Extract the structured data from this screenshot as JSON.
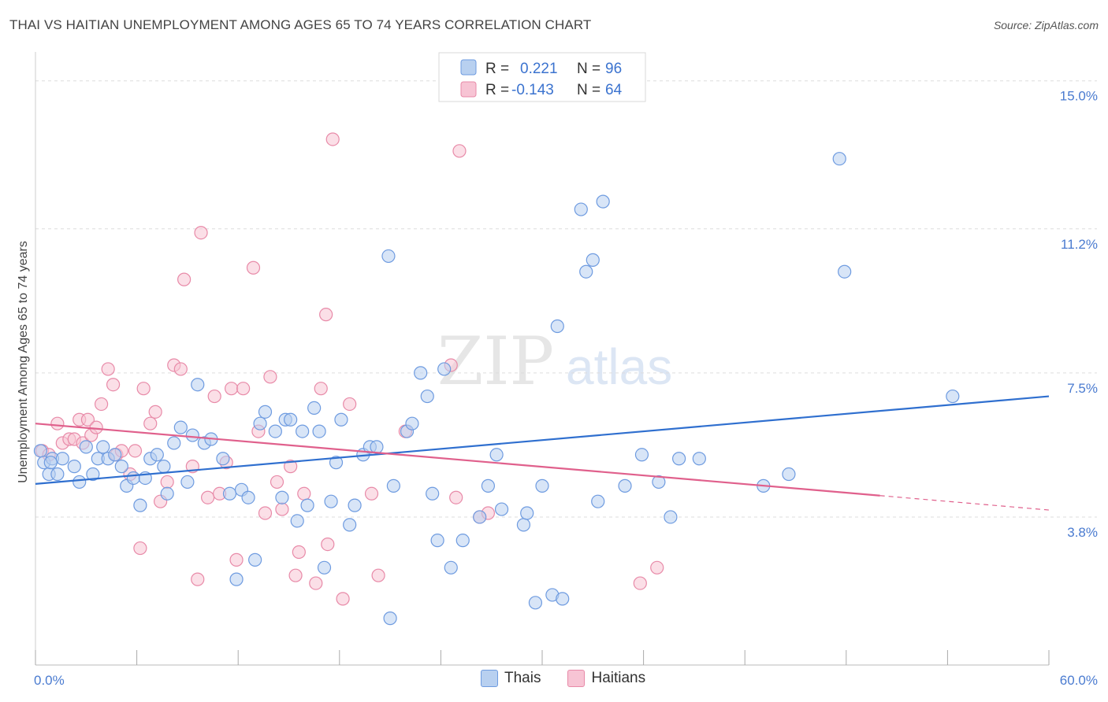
{
  "title": "THAI VS HAITIAN UNEMPLOYMENT AMONG AGES 65 TO 74 YEARS CORRELATION CHART",
  "source": "Source: ZipAtlas.com",
  "colors": {
    "thais_fill": "#b8d0f0",
    "thais_stroke": "#6e9be0",
    "thais_line": "#2f6fcf",
    "haitians_fill": "#f7c4d4",
    "haitians_stroke": "#e88aa8",
    "haitians_line": "#e0608c",
    "tick_text": "#4a7bd0",
    "grid": "#dddddd"
  },
  "legend": {
    "rows": [
      {
        "r_label": "R =",
        "r_value": "0.221",
        "n_label": "N =",
        "n_value": "96"
      },
      {
        "r_label": "R =",
        "r_value": "-0.143",
        "n_label": "N =",
        "n_value": "64"
      }
    ]
  },
  "bottom_legend": {
    "thais": "Thais",
    "haitians": "Haitians"
  },
  "watermark": {
    "zip": "ZIP",
    "atlas": "atlas"
  },
  "chart_data": {
    "type": "scatter",
    "title": "THAI VS HAITIAN UNEMPLOYMENT AMONG AGES 65 TO 74 YEARS CORRELATION CHART",
    "ylabel": "Unemployment Among Ages 65 to 74 years",
    "xlabel": "",
    "xlim": [
      0,
      60
    ],
    "ylim": [
      0,
      15.5
    ],
    "x_tick_labels": [
      "0.0%",
      "60.0%"
    ],
    "y_ticks": [
      3.8,
      7.5,
      11.2,
      15.0
    ],
    "y_tick_labels": [
      "3.8%",
      "7.5%",
      "11.2%",
      "15.0%"
    ],
    "grid": true,
    "legend_position": "top-center",
    "series": [
      {
        "name": "Thais",
        "trend": {
          "x": [
            0,
            60
          ],
          "y": [
            4.65,
            6.9
          ]
        },
        "points": [
          [
            0.3,
            5.5
          ],
          [
            0.5,
            5.2
          ],
          [
            0.8,
            4.9
          ],
          [
            1.0,
            5.3
          ],
          [
            1.3,
            4.9
          ],
          [
            1.6,
            5.3
          ],
          [
            2.3,
            5.1
          ],
          [
            2.6,
            4.7
          ],
          [
            3.0,
            5.6
          ],
          [
            3.4,
            4.9
          ],
          [
            3.7,
            5.3
          ],
          [
            4.0,
            5.6
          ],
          [
            4.3,
            5.3
          ],
          [
            4.7,
            5.4
          ],
          [
            5.1,
            5.1
          ],
          [
            5.4,
            4.6
          ],
          [
            5.8,
            4.8
          ],
          [
            6.2,
            4.1
          ],
          [
            6.5,
            4.8
          ],
          [
            6.8,
            5.3
          ],
          [
            7.2,
            5.4
          ],
          [
            7.6,
            5.1
          ],
          [
            7.8,
            4.4
          ],
          [
            8.2,
            5.7
          ],
          [
            8.6,
            6.1
          ],
          [
            9.0,
            4.7
          ],
          [
            9.3,
            5.9
          ],
          [
            9.6,
            7.2
          ],
          [
            10.0,
            5.7
          ],
          [
            10.4,
            5.8
          ],
          [
            11.1,
            5.3
          ],
          [
            11.5,
            4.4
          ],
          [
            11.9,
            2.2
          ],
          [
            12.2,
            4.5
          ],
          [
            12.6,
            4.3
          ],
          [
            13.0,
            2.7
          ],
          [
            13.3,
            6.2
          ],
          [
            13.6,
            6.5
          ],
          [
            14.2,
            6.0
          ],
          [
            14.8,
            6.3
          ],
          [
            14.6,
            4.3
          ],
          [
            15.1,
            6.3
          ],
          [
            15.5,
            3.7
          ],
          [
            15.8,
            6.0
          ],
          [
            16.1,
            4.1
          ],
          [
            16.5,
            6.6
          ],
          [
            16.8,
            6.0
          ],
          [
            17.1,
            2.5
          ],
          [
            17.5,
            4.2
          ],
          [
            17.8,
            5.2
          ],
          [
            18.1,
            6.3
          ],
          [
            18.6,
            3.6
          ],
          [
            18.9,
            4.1
          ],
          [
            19.4,
            5.4
          ],
          [
            19.8,
            5.6
          ],
          [
            20.2,
            5.6
          ],
          [
            20.9,
            10.5
          ],
          [
            21.2,
            4.6
          ],
          [
            21.0,
            1.2
          ],
          [
            22.0,
            6.0
          ],
          [
            22.3,
            6.2
          ],
          [
            22.8,
            7.5
          ],
          [
            23.2,
            6.9
          ],
          [
            23.5,
            4.4
          ],
          [
            23.8,
            3.2
          ],
          [
            24.2,
            7.6
          ],
          [
            24.6,
            2.5
          ],
          [
            25.3,
            3.2
          ],
          [
            26.3,
            3.8
          ],
          [
            26.8,
            4.6
          ],
          [
            27.3,
            5.4
          ],
          [
            27.6,
            4.0
          ],
          [
            28.9,
            3.6
          ],
          [
            29.1,
            3.9
          ],
          [
            29.6,
            1.6
          ],
          [
            30.0,
            4.6
          ],
          [
            30.6,
            1.8
          ],
          [
            30.9,
            8.7
          ],
          [
            31.2,
            1.7
          ],
          [
            32.3,
            11.7
          ],
          [
            32.6,
            10.1
          ],
          [
            33.0,
            10.4
          ],
          [
            33.3,
            4.2
          ],
          [
            33.6,
            11.9
          ],
          [
            34.9,
            4.6
          ],
          [
            35.9,
            5.4
          ],
          [
            36.9,
            4.7
          ],
          [
            37.6,
            3.8
          ],
          [
            38.1,
            5.3
          ],
          [
            39.3,
            5.3
          ],
          [
            43.1,
            4.6
          ],
          [
            44.6,
            4.9
          ],
          [
            47.6,
            13.0
          ],
          [
            47.9,
            10.1
          ],
          [
            54.3,
            6.9
          ],
          [
            0.9,
            5.2
          ]
        ]
      },
      {
        "name": "Haitians",
        "trend": {
          "x": [
            0,
            50
          ],
          "y": [
            6.2,
            4.35
          ]
        },
        "trend_dashed": {
          "x": [
            50,
            60
          ],
          "y": [
            4.35,
            3.98
          ]
        },
        "points": [
          [
            0.4,
            5.5
          ],
          [
            0.8,
            5.4
          ],
          [
            1.3,
            6.2
          ],
          [
            1.6,
            5.7
          ],
          [
            2.0,
            5.8
          ],
          [
            2.3,
            5.8
          ],
          [
            2.6,
            6.3
          ],
          [
            2.8,
            5.7
          ],
          [
            3.1,
            6.3
          ],
          [
            3.3,
            5.9
          ],
          [
            3.6,
            6.1
          ],
          [
            3.9,
            6.7
          ],
          [
            4.3,
            7.6
          ],
          [
            4.6,
            7.2
          ],
          [
            4.8,
            5.4
          ],
          [
            5.1,
            5.5
          ],
          [
            5.6,
            4.9
          ],
          [
            5.9,
            5.5
          ],
          [
            6.2,
            3.0
          ],
          [
            6.4,
            7.1
          ],
          [
            6.8,
            6.2
          ],
          [
            7.1,
            6.5
          ],
          [
            7.4,
            4.2
          ],
          [
            7.8,
            4.7
          ],
          [
            8.2,
            7.7
          ],
          [
            8.6,
            7.6
          ],
          [
            8.8,
            9.9
          ],
          [
            9.3,
            5.1
          ],
          [
            9.6,
            2.2
          ],
          [
            9.8,
            11.1
          ],
          [
            10.2,
            4.3
          ],
          [
            10.6,
            6.9
          ],
          [
            10.9,
            4.4
          ],
          [
            11.3,
            5.2
          ],
          [
            11.6,
            7.1
          ],
          [
            11.9,
            2.7
          ],
          [
            12.3,
            7.1
          ],
          [
            12.9,
            10.2
          ],
          [
            13.2,
            6.0
          ],
          [
            13.6,
            3.9
          ],
          [
            13.9,
            7.4
          ],
          [
            14.3,
            4.7
          ],
          [
            14.6,
            4.0
          ],
          [
            15.1,
            5.1
          ],
          [
            15.4,
            2.3
          ],
          [
            15.6,
            2.9
          ],
          [
            15.9,
            4.4
          ],
          [
            16.6,
            2.1
          ],
          [
            16.9,
            7.1
          ],
          [
            17.3,
            3.1
          ],
          [
            17.2,
            9.0
          ],
          [
            17.6,
            13.5
          ],
          [
            18.2,
            1.7
          ],
          [
            18.6,
            6.7
          ],
          [
            19.9,
            4.4
          ],
          [
            20.3,
            2.3
          ],
          [
            21.9,
            6.0
          ],
          [
            24.6,
            7.7
          ],
          [
            24.9,
            4.3
          ],
          [
            25.1,
            13.2
          ],
          [
            26.3,
            3.8
          ],
          [
            26.8,
            3.9
          ],
          [
            35.8,
            2.1
          ],
          [
            36.8,
            2.5
          ]
        ]
      }
    ]
  }
}
